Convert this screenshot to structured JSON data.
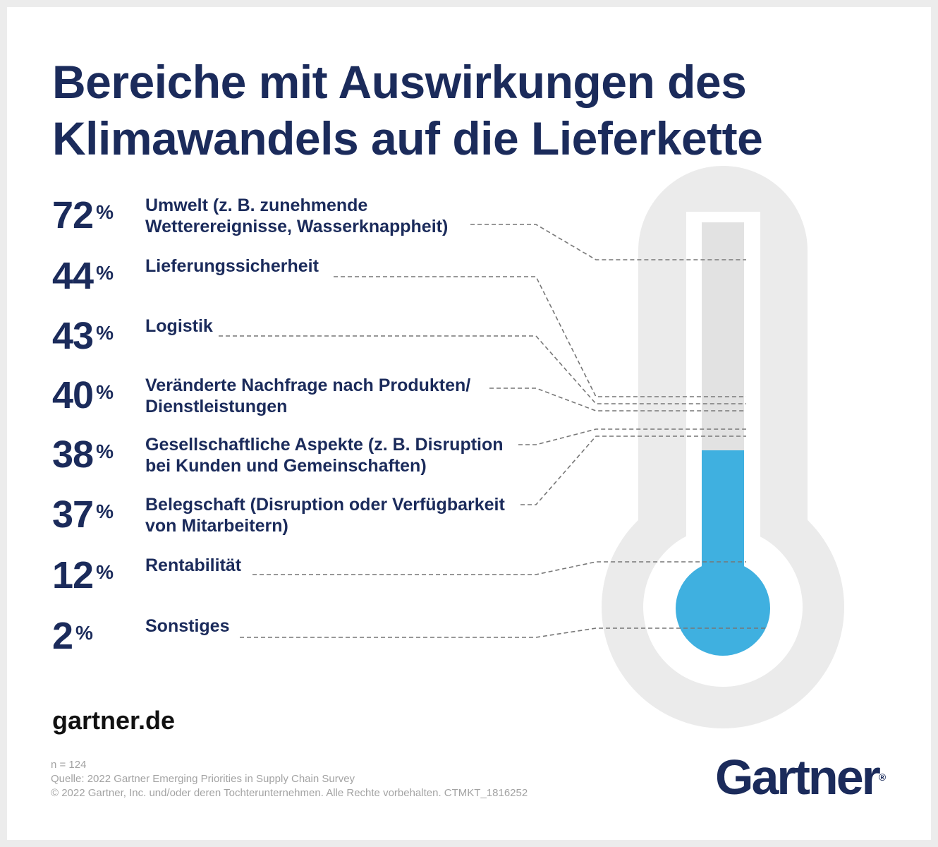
{
  "title_lines": [
    "Bereiche mit Auswirkungen des",
    "Klimawandels auf die Lieferkette"
  ],
  "percent_symbol": "%",
  "chart_data": {
    "type": "bar",
    "title": "Bereiche mit Auswirkungen des Klimawandels auf die Lieferkette",
    "unit": "%",
    "categories": [
      "Umwelt (z. B. zunehmende Wetterereignisse, Wasserknappheit)",
      "Lieferungssicherheit",
      "Logistik",
      "Veränderte Nachfrage nach Produkten/ Dienstleistungen",
      "Gesellschaftliche Aspekte (z. B. Disruption bei Kunden und Gemeinschaften)",
      "Belegschaft (Disruption oder Verfügbarkeit von Mitarbeitern)",
      "Rentabilität",
      "Sonstiges"
    ],
    "values": [
      72,
      44,
      43,
      40,
      38,
      37,
      12,
      2
    ]
  },
  "items": [
    {
      "value": "72",
      "lines": [
        "Umwelt (z. B. zunehmende",
        "Wetterereignisse, Wasserknappheit)"
      ]
    },
    {
      "value": "44",
      "lines": [
        "Lieferungssicherheit"
      ]
    },
    {
      "value": "43",
      "lines": [
        "Logistik"
      ]
    },
    {
      "value": "40",
      "lines": [
        "Veränderte Nachfrage nach Produkten/",
        "Dienstleistungen"
      ]
    },
    {
      "value": "38",
      "lines": [
        "Gesellschaftliche Aspekte (z. B. Disruption",
        "bei Kunden und Gemeinschaften)"
      ]
    },
    {
      "value": "37",
      "lines": [
        "Belegschaft (Disruption oder Verfügbarkeit",
        "von Mitarbeitern)"
      ]
    },
    {
      "value": "12",
      "lines": [
        "Rentabilität"
      ]
    },
    {
      "value": "2",
      "lines": [
        "Sonstiges"
      ]
    }
  ],
  "thermometer_fill_percent": 37,
  "website": "gartner.de",
  "footnotes": [
    "n = 124",
    "Quelle: 2022 Gartner Emerging Priorities in Supply Chain Survey",
    "© 2022 Gartner, Inc. und/oder deren Tochterunternehmen. Alle Rechte vorbehalten. CTMKT_1816252"
  ],
  "logo_text": "Gartner",
  "logo_registered": "®",
  "colors": {
    "navy": "#1b2b5b",
    "thermo_outer": "#ebebeb",
    "tube_empty": "#e2e2e2",
    "fill": "#3fb0e0",
    "dash": "#777777"
  }
}
